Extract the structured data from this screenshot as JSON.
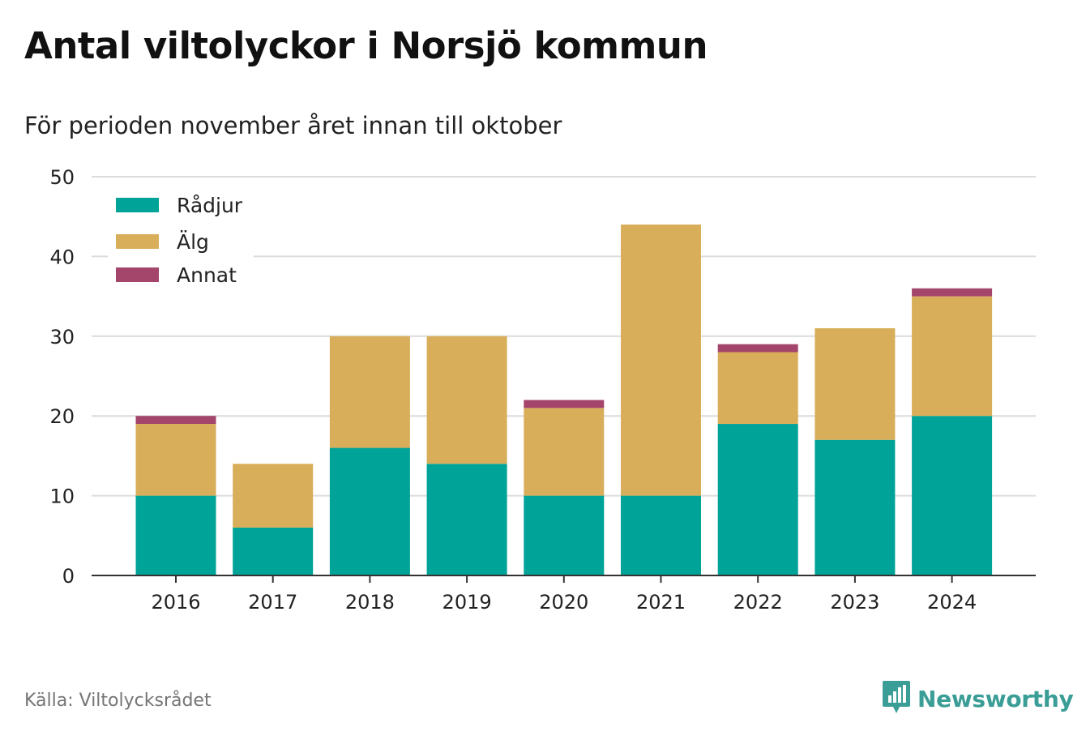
{
  "header": {
    "title": "Antal viltolyckor i Norsjö kommun",
    "subtitle": "För perioden november året innan till oktober"
  },
  "footer": {
    "source": "Källa: Viltolycksrådet",
    "brand": "Newsworthy",
    "brand_icon": "newsworthy-logo-icon",
    "brand_color": "#3a9d96"
  },
  "chart_data": {
    "type": "bar",
    "stacked": true,
    "categories": [
      "2016",
      "2017",
      "2018",
      "2019",
      "2020",
      "2021",
      "2022",
      "2023",
      "2024"
    ],
    "series": [
      {
        "name": "Rådjur",
        "color": "#00a398",
        "values": [
          10,
          6,
          16,
          14,
          10,
          10,
          19,
          17,
          20
        ]
      },
      {
        "name": "Älg",
        "color": "#d9ae5a",
        "values": [
          9,
          8,
          14,
          16,
          11,
          34,
          9,
          14,
          15
        ]
      },
      {
        "name": "Annat",
        "color": "#a4456b",
        "values": [
          1,
          0,
          0,
          0,
          1,
          0,
          1,
          0,
          1
        ]
      }
    ],
    "ylim": [
      0,
      50
    ],
    "yticks": [
      0,
      10,
      20,
      30,
      40,
      50
    ],
    "grid": true,
    "legend_position": "top-left",
    "title": "Antal viltolyckor i Norsjö kommun",
    "subtitle": "För perioden november året innan till oktober"
  }
}
